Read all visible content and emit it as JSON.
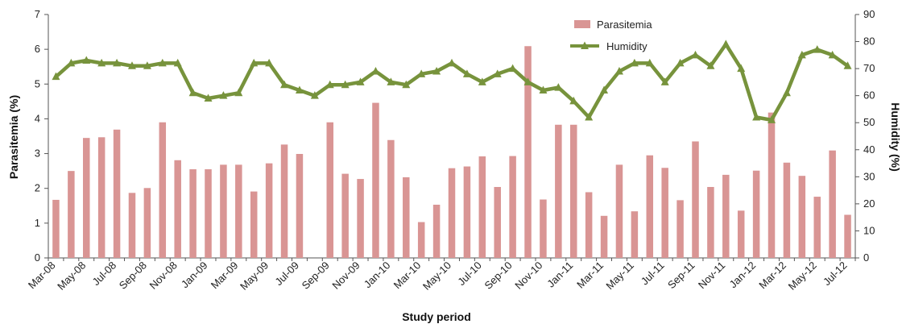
{
  "chart_data": {
    "type": "bar",
    "categories": [
      "Mar-08",
      "Apr-08",
      "May-08",
      "Jun-08",
      "Jul-08",
      "Aug-08",
      "Sep-08",
      "Oct-08",
      "Nov-08",
      "Dec-08",
      "Jan-09",
      "Feb-09",
      "Mar-09",
      "Apr-09",
      "May-09",
      "Jun-09",
      "Jul-09",
      "Aug-09",
      "Sep-09",
      "Oct-09",
      "Nov-09",
      "Dec-09",
      "Jan-10",
      "Feb-10",
      "Mar-10",
      "Apr-10",
      "May-10",
      "Jun-10",
      "Jul-10",
      "Aug-10",
      "Sep-10",
      "Oct-10",
      "Nov-10",
      "Dec-10",
      "Jan-11",
      "Feb-11",
      "Mar-11",
      "Apr-11",
      "May-11",
      "Jun-11",
      "Jul-11",
      "Aug-11",
      "Sep-11",
      "Oct-11",
      "Nov-11",
      "Dec-11",
      "Jan-12",
      "Feb-12",
      "Mar-12",
      "Apr-12",
      "May-12",
      "Jun-12",
      "Jul-12"
    ],
    "tick_labels": [
      "Mar-08",
      "May-08",
      "Jul-08",
      "Sep-08",
      "Nov-08",
      "Jan-09",
      "Mar-09",
      "May-09",
      "Jul-09",
      "Sep-09",
      "Nov-09",
      "Jan-10",
      "Mar-10",
      "May-10",
      "Jul-10",
      "Sep-10",
      "Nov-10",
      "Jan-11",
      "Mar-11",
      "May-11",
      "Jul-11",
      "Sep-11",
      "Nov-11",
      "Jan-12",
      "Mar-12",
      "May-12",
      "Jul-12"
    ],
    "series": [
      {
        "name": "Parasitemia",
        "type": "bar",
        "axis": "left",
        "color": "#d99594",
        "values": [
          1.67,
          2.5,
          3.45,
          3.47,
          3.69,
          1.87,
          2.01,
          3.9,
          2.81,
          2.55,
          2.55,
          2.68,
          2.68,
          1.91,
          2.72,
          3.26,
          2.99,
          null,
          3.9,
          2.42,
          2.27,
          4.46,
          3.39,
          2.32,
          1.03,
          1.53,
          2.58,
          2.63,
          2.92,
          2.04,
          2.93,
          6.09,
          1.68,
          3.83,
          3.83,
          1.89,
          1.21,
          2.68,
          1.34,
          2.95,
          2.59,
          1.66,
          3.35,
          2.04,
          2.39,
          1.36,
          2.51,
          4.18,
          2.74,
          2.36,
          1.76,
          3.09,
          1.24
        ]
      },
      {
        "name": "Humidity",
        "type": "line",
        "axis": "right",
        "color": "#77933c",
        "values": [
          67,
          72,
          73,
          72,
          72,
          71,
          71,
          72,
          72,
          61,
          59,
          60,
          61,
          72,
          72,
          64,
          62,
          60,
          64,
          64,
          65,
          69,
          65,
          64,
          68,
          69,
          72,
          68,
          65,
          68,
          70,
          65,
          62,
          63,
          58,
          52,
          62,
          69,
          72,
          72,
          65,
          72,
          75,
          71,
          79,
          70,
          52,
          51,
          61,
          75,
          77,
          75,
          71
        ]
      }
    ],
    "left_axis": {
      "label": "Parasitemia (%)",
      "min": 0,
      "max": 7,
      "step": 1
    },
    "right_axis": {
      "label": "Humidity (%)",
      "min": 0,
      "max": 90,
      "step": 10
    },
    "xlabel": "Study period",
    "legend": {
      "position": "top-right",
      "items": [
        "Parasitemia",
        "Humidity"
      ]
    },
    "grid": false
  }
}
